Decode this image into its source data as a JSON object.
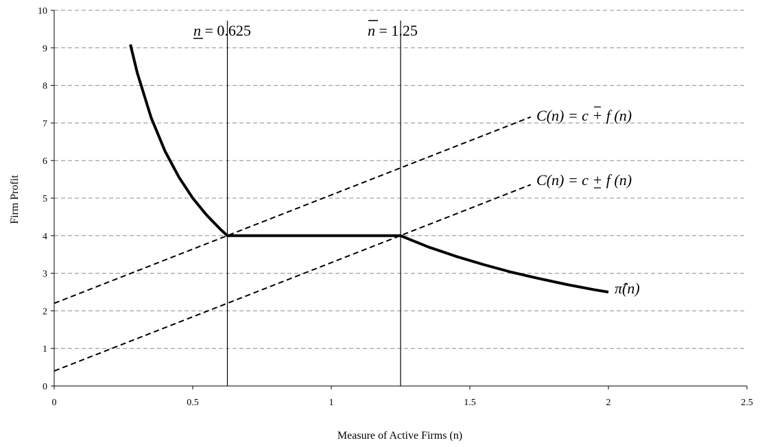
{
  "chart_data": {
    "type": "line",
    "title": "",
    "xlabel": "Measure of Active Firms (n)",
    "ylabel": "Firm Profit",
    "xlim": [
      0,
      2.5
    ],
    "ylim": [
      0,
      10
    ],
    "x_ticks": [
      "0",
      "0.5",
      "1",
      "1.5",
      "2",
      "2.5"
    ],
    "y_ticks": [
      "0",
      "1",
      "2",
      "3",
      "4",
      "5",
      "6",
      "7",
      "8",
      "9",
      "10"
    ],
    "grid": "horizontal dashed",
    "series": [
      {
        "style": "thick-solid",
        "points": [
          [
            0.275,
            9.09
          ],
          [
            0.3,
            8.33
          ],
          [
            0.35,
            7.14
          ],
          [
            0.4,
            6.25
          ],
          [
            0.45,
            5.56
          ],
          [
            0.5,
            5.0
          ],
          [
            0.55,
            4.55
          ],
          [
            0.6,
            4.17
          ],
          [
            0.625,
            4.0
          ],
          [
            1.25,
            4.0
          ],
          [
            1.35,
            3.7
          ],
          [
            1.45,
            3.45
          ],
          [
            1.55,
            3.23
          ],
          [
            1.65,
            3.03
          ],
          [
            1.75,
            2.86
          ],
          [
            1.85,
            2.7
          ],
          [
            1.95,
            2.56
          ],
          [
            2.0,
            2.5
          ]
        ]
      },
      {
        "style": "dashed",
        "points": [
          [
            0,
            2.2
          ],
          [
            1.72,
            7.16
          ]
        ]
      },
      {
        "style": "dashed",
        "points": [
          [
            0,
            0.4
          ],
          [
            1.72,
            5.36
          ]
        ]
      }
    ],
    "vertical_lines": [
      0.625,
      1.25
    ],
    "annotations": {
      "n_low": {
        "var": "n",
        "eq": " = 0.625"
      },
      "n_high": {
        "var": "n",
        "eq": " = 1.25"
      },
      "c_high": {
        "pre": "C(n) = ",
        "c": "c",
        "post": " + f (n)"
      },
      "c_low": {
        "pre": "C(n) = ",
        "c": "c",
        "post": " + f (n)"
      },
      "pi_hat": {
        "sym": "π̂",
        "post": "(n)"
      }
    }
  }
}
